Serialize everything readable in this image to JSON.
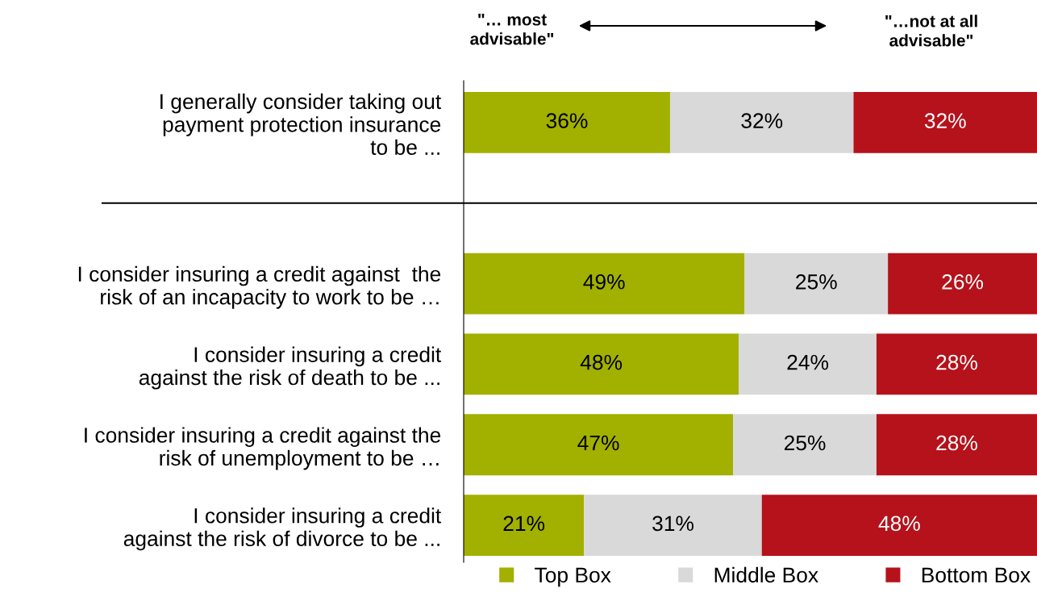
{
  "chart_data": {
    "type": "bar",
    "orientation": "horizontal",
    "stacked": true,
    "categories": [
      "I generally consider taking out\npayment protection insurance\nto be ...",
      null,
      "I consider insuring a credit against  the\nrisk of an incapacity to work to be …",
      "I consider insuring a credit\nagainst the risk of death to be ...",
      "I consider insuring a credit against the\nrisk of unemployment to be …",
      "I consider insuring a credit\nagainst the risk of divorce to be ..."
    ],
    "series": [
      {
        "name": "Top Box",
        "color": "#a2b000",
        "values": [
          36,
          null,
          49,
          48,
          47,
          21
        ],
        "value_labels": [
          "36%",
          null,
          "49%",
          "48%",
          "47%",
          "21%"
        ]
      },
      {
        "name": "Middle Box",
        "color": "#d9d9d9",
        "values": [
          32,
          null,
          25,
          24,
          25,
          31
        ],
        "value_labels": [
          "32%",
          null,
          "25%",
          "24%",
          "25%",
          "31%"
        ]
      },
      {
        "name": "Bottom Box",
        "color": "#b5121b",
        "values": [
          32,
          null,
          26,
          28,
          28,
          48
        ],
        "value_labels": [
          "32%",
          null,
          "26%",
          "28%",
          "28%",
          "48%"
        ]
      }
    ],
    "tick_labels": "y",
    "legend": "bottom",
    "grid": false,
    "annotations": [
      "\"… most\nadvisable\"",
      "\"…not at all\nadvisable\""
    ]
  }
}
